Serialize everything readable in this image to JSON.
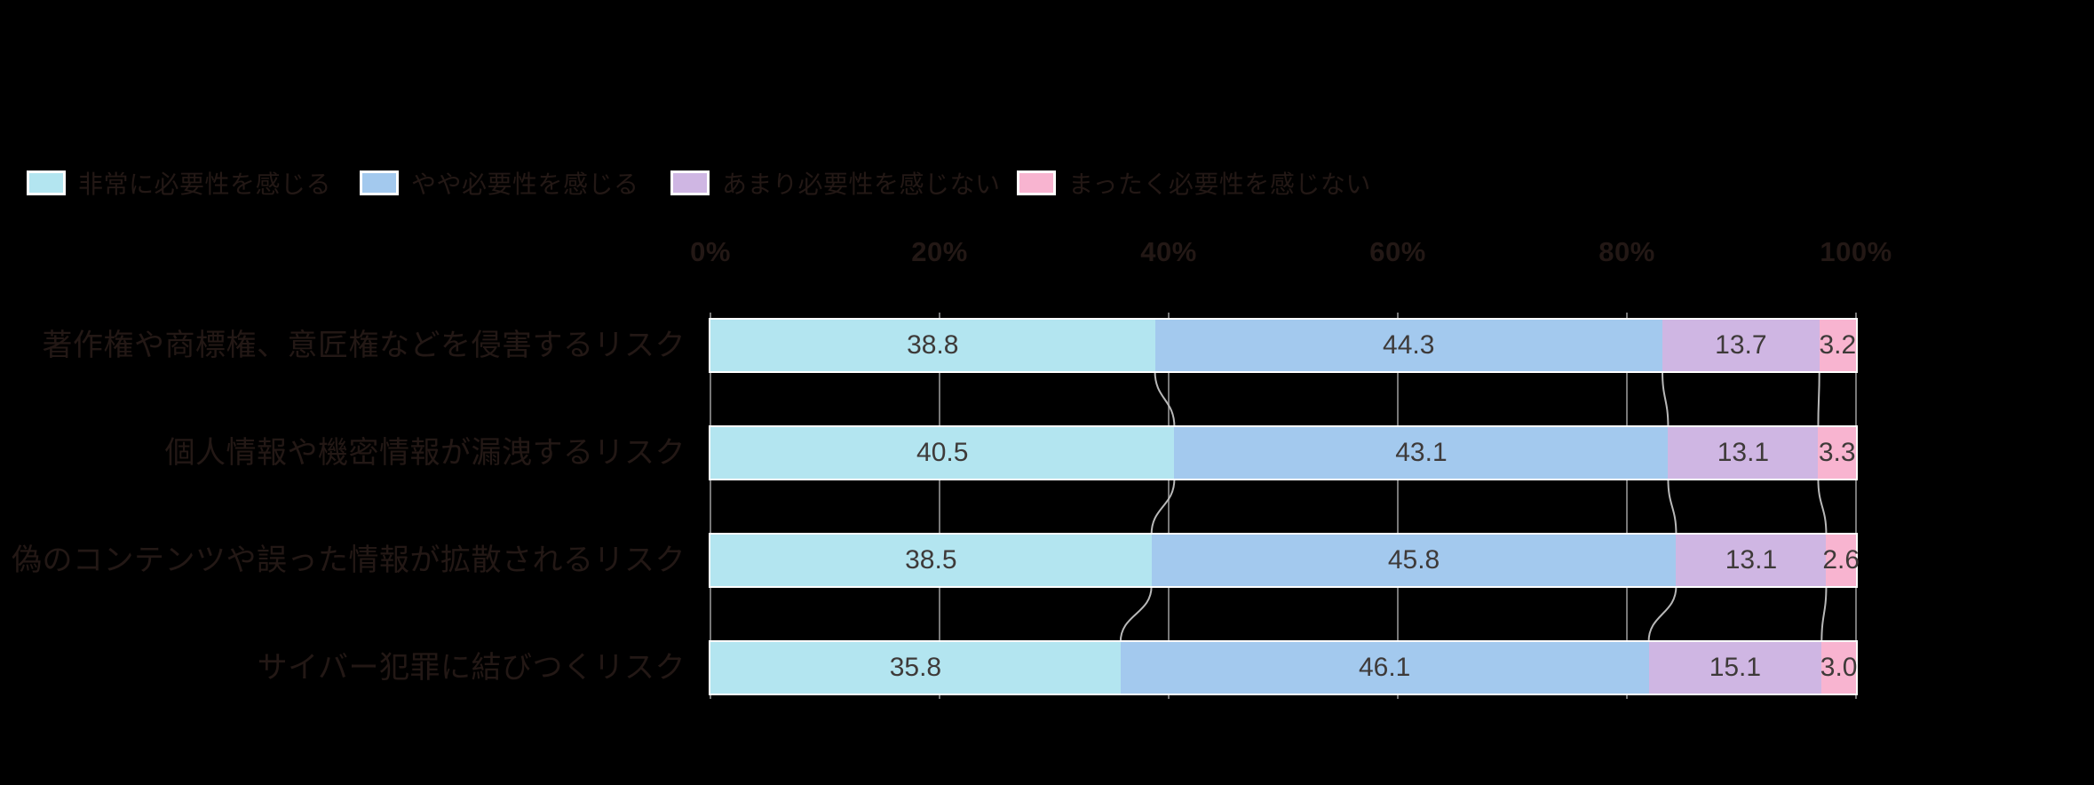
{
  "background_color": "#000000",
  "text_color": "#231815",
  "chart_data": {
    "type": "bar",
    "orientation": "horizontal-stacked",
    "title": "",
    "categories": [
      "著作権や商標権、意匠権などを侵害するリスク",
      "個人情報や機密情報が漏洩するリスク",
      "偽のコンテンツや誤った情報が拡散されるリスク",
      "サイバー犯罪に結びつくリスク"
    ],
    "series": [
      {
        "name": "非常に必要性を感じる",
        "color": "#b3e5f0",
        "values": [
          38.8,
          40.5,
          38.5,
          35.8
        ],
        "labels": [
          "38.8",
          "40.5",
          "38.5",
          "35.8"
        ]
      },
      {
        "name": "やや必要性を感じる",
        "color": "#a3c9ee",
        "values": [
          44.3,
          43.1,
          45.8,
          46.1
        ],
        "labels": [
          "44.3",
          "43.1",
          "45.8",
          "46.1"
        ]
      },
      {
        "name": "あまり必要性を感じない",
        "color": "#cfb6e3",
        "values": [
          13.7,
          13.1,
          13.1,
          15.1
        ],
        "labels": [
          "13.7",
          "13.1",
          "13.1",
          "15.1"
        ]
      },
      {
        "name": "まったく必要性を感じない",
        "color": "#f8b4d0",
        "values": [
          3.2,
          3.3,
          2.6,
          3.0
        ],
        "labels": [
          "3.2",
          "3.3",
          "2.6",
          "3.0"
        ]
      }
    ],
    "x_ticks": [
      "0%",
      "20%",
      "40%",
      "60%",
      "80%",
      "100%"
    ],
    "x_tick_values": [
      0,
      20,
      40,
      60,
      80,
      100
    ],
    "xlim": [
      0,
      100
    ],
    "legend_position": "top",
    "grid": true,
    "value_labels": true,
    "connector_line_color": "#b8b8b8",
    "gridline_color": "#777777",
    "bar_border_color": "#ffffff"
  }
}
